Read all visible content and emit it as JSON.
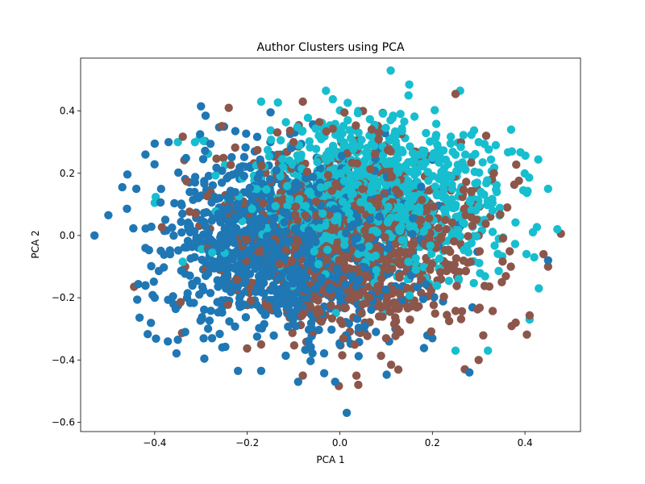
{
  "chart_data": {
    "type": "scatter",
    "title": "Author Clusters using PCA",
    "xlabel": "PCA 1",
    "ylabel": "PCA 2",
    "xlim": [
      -0.56,
      0.52
    ],
    "ylim": [
      -0.63,
      0.57
    ],
    "xticks": [
      -0.4,
      -0.2,
      0.0,
      0.2,
      0.4
    ],
    "yticks": [
      -0.6,
      -0.4,
      -0.2,
      0.0,
      0.2,
      0.4
    ],
    "xtick_labels": [
      "−0.4",
      "−0.2",
      "0.0",
      "0.2",
      "0.4"
    ],
    "ytick_labels": [
      "−0.6",
      "−0.4",
      "−0.2",
      "0.0",
      "0.2",
      "0.4"
    ],
    "grid": false,
    "legend": "none",
    "series_colors": [
      "#1f77b4",
      "#8c564b",
      "#17becf"
    ],
    "series": [
      {
        "color": "#1f77b4",
        "center": [
          -0.12,
          -0.04
        ],
        "spread": [
          0.13,
          0.14
        ],
        "count": 1300,
        "points": [
          [
            -0.53,
            0.0
          ],
          [
            -0.5,
            0.065
          ],
          [
            -0.47,
            0.155
          ],
          [
            -0.42,
            0.26
          ],
          [
            -0.4,
            0.295
          ],
          [
            -0.37,
            0.3
          ],
          [
            -0.3,
            0.415
          ],
          [
            -0.29,
            0.385
          ],
          [
            -0.01,
            -0.47
          ],
          [
            0.015,
            -0.57
          ],
          [
            -0.09,
            -0.47
          ],
          [
            -0.22,
            -0.435
          ],
          [
            -0.17,
            -0.435
          ],
          [
            -0.35,
            -0.335
          ],
          [
            -0.42,
            -0.16
          ],
          [
            -0.42,
            -0.04
          ],
          [
            0.28,
            -0.44
          ],
          [
            0.45,
            -0.08
          ],
          [
            -0.4,
            -0.2
          ],
          [
            -0.33,
            -0.2
          ],
          [
            -0.26,
            0.12
          ],
          [
            -0.15,
            0.3
          ],
          [
            -0.05,
            0.25
          ],
          [
            0.0,
            -0.35
          ],
          [
            0.12,
            -0.3
          ],
          [
            0.2,
            -0.33
          ],
          [
            -0.25,
            -0.1
          ],
          [
            -0.1,
            -0.15
          ],
          [
            -0.3,
            0.05
          ]
        ]
      },
      {
        "color": "#8c564b",
        "center": [
          0.04,
          -0.02
        ],
        "spread": [
          0.14,
          0.15
        ],
        "count": 1000,
        "points": [
          [
            -0.24,
            0.41
          ],
          [
            -0.08,
            0.43
          ],
          [
            0.25,
            0.455
          ],
          [
            0.04,
            -0.48
          ],
          [
            -0.08,
            -0.45
          ],
          [
            -0.17,
            -0.35
          ],
          [
            0.38,
            -0.28
          ],
          [
            0.45,
            -0.1
          ],
          [
            0.44,
            -0.06
          ],
          [
            0.3,
            -0.4
          ],
          [
            0.1,
            -0.33
          ],
          [
            0.27,
            -0.43
          ],
          [
            0.05,
            0.4
          ],
          [
            -0.1,
            0.3
          ],
          [
            0.2,
            0.15
          ],
          [
            0.15,
            -0.2
          ],
          [
            -0.05,
            -0.25
          ],
          [
            0.3,
            0.0
          ],
          [
            0.35,
            -0.15
          ],
          [
            0.0,
            0.0
          ]
        ]
      },
      {
        "color": "#17becf",
        "center": [
          0.08,
          0.12
        ],
        "spread": [
          0.14,
          0.12
        ],
        "count": 1000,
        "points": [
          [
            0.11,
            0.53
          ],
          [
            0.15,
            0.485
          ],
          [
            0.26,
            0.465
          ],
          [
            -0.03,
            0.465
          ],
          [
            0.45,
            0.15
          ],
          [
            0.47,
            0.02
          ],
          [
            0.42,
            -0.07
          ],
          [
            0.41,
            -0.27
          ],
          [
            0.43,
            -0.17
          ],
          [
            -0.4,
            0.105
          ],
          [
            -0.35,
            0.3
          ],
          [
            0.37,
            0.34
          ],
          [
            -0.17,
            0.43
          ],
          [
            0.04,
            0.4
          ],
          [
            0.3,
            0.3
          ],
          [
            0.32,
            -0.37
          ],
          [
            0.25,
            -0.37
          ],
          [
            0.2,
            0.25
          ],
          [
            0.15,
            0.1
          ],
          [
            -0.1,
            0.2
          ]
        ]
      }
    ]
  }
}
